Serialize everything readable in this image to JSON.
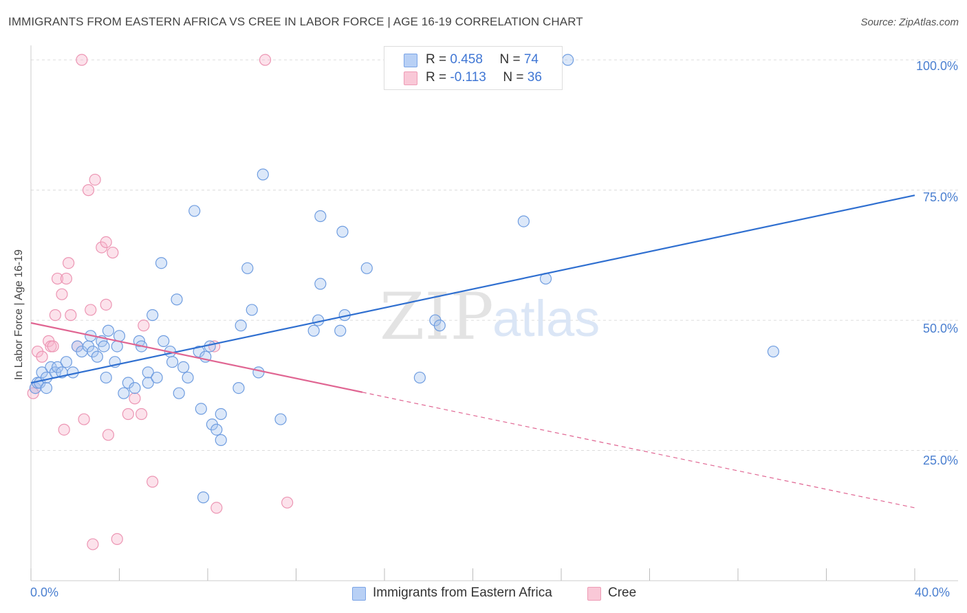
{
  "header": {
    "title": "IMMIGRANTS FROM EASTERN AFRICA VS CREE IN LABOR FORCE | AGE 16-19 CORRELATION CHART",
    "source": "Source: ZipAtlas.com"
  },
  "watermark": {
    "zip": "ZIP",
    "atlas": "atlas"
  },
  "legend": {
    "entries": [
      {
        "r_label": "R = ",
        "r_value": "0.458",
        "n_label": "N = ",
        "n_value": "74",
        "fill": "#b8d0f5",
        "stroke": "#7ba4e6"
      },
      {
        "r_label": "R = ",
        "r_value": "-0.113",
        "n_label": "N = ",
        "n_value": "36",
        "fill": "#f9c8d7",
        "stroke": "#ee9bb5"
      }
    ]
  },
  "bottom_legend": {
    "series1": "Immigrants from Eastern Africa",
    "series2": "Cree"
  },
  "colors": {
    "blue_fill": "rgba(167,197,240,0.40)",
    "blue_stroke": "#6f9de0",
    "blue_line": "#2f6fd0",
    "pink_fill": "rgba(247,183,204,0.40)",
    "pink_stroke": "#ec95b3",
    "pink_line": "#e06592",
    "grid": "#dcdcdc",
    "tick_text": "#4a7fd0"
  },
  "chart_data": {
    "type": "scatter",
    "title": "IMMIGRANTS FROM EASTERN AFRICA VS CREE IN LABOR FORCE | AGE 16-19 CORRELATION CHART",
    "xlabel": "",
    "ylabel": "In Labor Force | Age 16-19",
    "xlim": [
      0,
      40
    ],
    "ylim": [
      0,
      102
    ],
    "x_tick_labels": [
      "0.0%",
      "40.0%"
    ],
    "y_ticks": [
      25,
      50,
      75,
      100
    ],
    "y_tick_labels": [
      "25.0%",
      "50.0%",
      "75.0%",
      "100.0%"
    ],
    "grid": true,
    "legend": "top-center",
    "series": [
      {
        "name": "Immigrants from Eastern Africa",
        "R": 0.458,
        "N": 74,
        "trend": {
          "x0": 0,
          "y0": 38.0,
          "x1": 40,
          "y1": 74.0,
          "dashed_from": null
        },
        "points": [
          [
            0.2,
            37
          ],
          [
            0.3,
            38
          ],
          [
            0.4,
            38
          ],
          [
            0.5,
            40
          ],
          [
            0.7,
            39
          ],
          [
            0.7,
            37
          ],
          [
            0.9,
            41
          ],
          [
            1.1,
            40
          ],
          [
            1.2,
            41
          ],
          [
            1.4,
            40
          ],
          [
            1.9,
            40
          ],
          [
            2.1,
            45
          ],
          [
            2.3,
            44
          ],
          [
            2.6,
            45
          ],
          [
            2.8,
            44
          ],
          [
            3.0,
            43
          ],
          [
            3.2,
            46
          ],
          [
            3.3,
            45
          ],
          [
            3.4,
            39
          ],
          [
            3.5,
            48
          ],
          [
            3.8,
            42
          ],
          [
            3.9,
            45
          ],
          [
            4.0,
            47
          ],
          [
            4.2,
            36
          ],
          [
            4.4,
            38
          ],
          [
            4.7,
            37
          ],
          [
            4.9,
            46
          ],
          [
            5.0,
            45
          ],
          [
            5.3,
            40
          ],
          [
            5.3,
            38
          ],
          [
            5.5,
            51
          ],
          [
            5.7,
            39
          ],
          [
            5.9,
            61
          ],
          [
            6.0,
            46
          ],
          [
            6.3,
            44
          ],
          [
            6.6,
            54
          ],
          [
            6.7,
            36
          ],
          [
            6.9,
            41
          ],
          [
            7.1,
            39
          ],
          [
            7.4,
            71
          ],
          [
            7.6,
            44
          ],
          [
            7.7,
            33
          ],
          [
            7.9,
            43
          ],
          [
            8.1,
            45
          ],
          [
            8.2,
            30
          ],
          [
            8.4,
            29
          ],
          [
            8.6,
            32
          ],
          [
            8.6,
            27
          ],
          [
            9.4,
            37
          ],
          [
            9.5,
            49
          ],
          [
            9.8,
            60
          ],
          [
            10.0,
            52
          ],
          [
            10.3,
            40
          ],
          [
            10.5,
            78
          ],
          [
            11.3,
            31
          ],
          [
            12.8,
            48
          ],
          [
            13.0,
            50
          ],
          [
            13.1,
            57
          ],
          [
            13.1,
            70
          ],
          [
            14.0,
            48
          ],
          [
            14.1,
            67
          ],
          [
            14.2,
            51
          ],
          [
            15.2,
            60
          ],
          [
            17.6,
            39
          ],
          [
            18.3,
            50
          ],
          [
            18.5,
            49
          ],
          [
            22.3,
            69
          ],
          [
            23.3,
            58
          ],
          [
            24.3,
            100
          ],
          [
            33.6,
            44
          ],
          [
            7.8,
            16
          ],
          [
            6.4,
            42
          ],
          [
            2.7,
            47
          ],
          [
            1.6,
            42
          ]
        ]
      },
      {
        "name": "Cree",
        "R": -0.113,
        "N": 36,
        "trend": {
          "x0": 0,
          "y0": 49.5,
          "x1": 40,
          "y1": 14.0,
          "dashed_from": 15.0
        },
        "points": [
          [
            0.2,
            37
          ],
          [
            0.3,
            44
          ],
          [
            0.5,
            43
          ],
          [
            0.8,
            46
          ],
          [
            0.9,
            45
          ],
          [
            1.0,
            45
          ],
          [
            1.1,
            51
          ],
          [
            1.2,
            58
          ],
          [
            1.4,
            55
          ],
          [
            1.5,
            29
          ],
          [
            1.6,
            58
          ],
          [
            1.7,
            61
          ],
          [
            1.8,
            51
          ],
          [
            2.1,
            45
          ],
          [
            2.3,
            100
          ],
          [
            2.4,
            31
          ],
          [
            2.6,
            75
          ],
          [
            2.7,
            52
          ],
          [
            2.8,
            7
          ],
          [
            2.9,
            77
          ],
          [
            3.2,
            64
          ],
          [
            3.4,
            65
          ],
          [
            3.4,
            53
          ],
          [
            3.5,
            28
          ],
          [
            3.7,
            63
          ],
          [
            3.9,
            8
          ],
          [
            4.4,
            32
          ],
          [
            4.7,
            35
          ],
          [
            5.0,
            32
          ],
          [
            5.1,
            49
          ],
          [
            5.5,
            19
          ],
          [
            8.3,
            45
          ],
          [
            8.4,
            14
          ],
          [
            10.6,
            100
          ],
          [
            11.6,
            15
          ],
          [
            0.1,
            36
          ]
        ]
      }
    ]
  }
}
